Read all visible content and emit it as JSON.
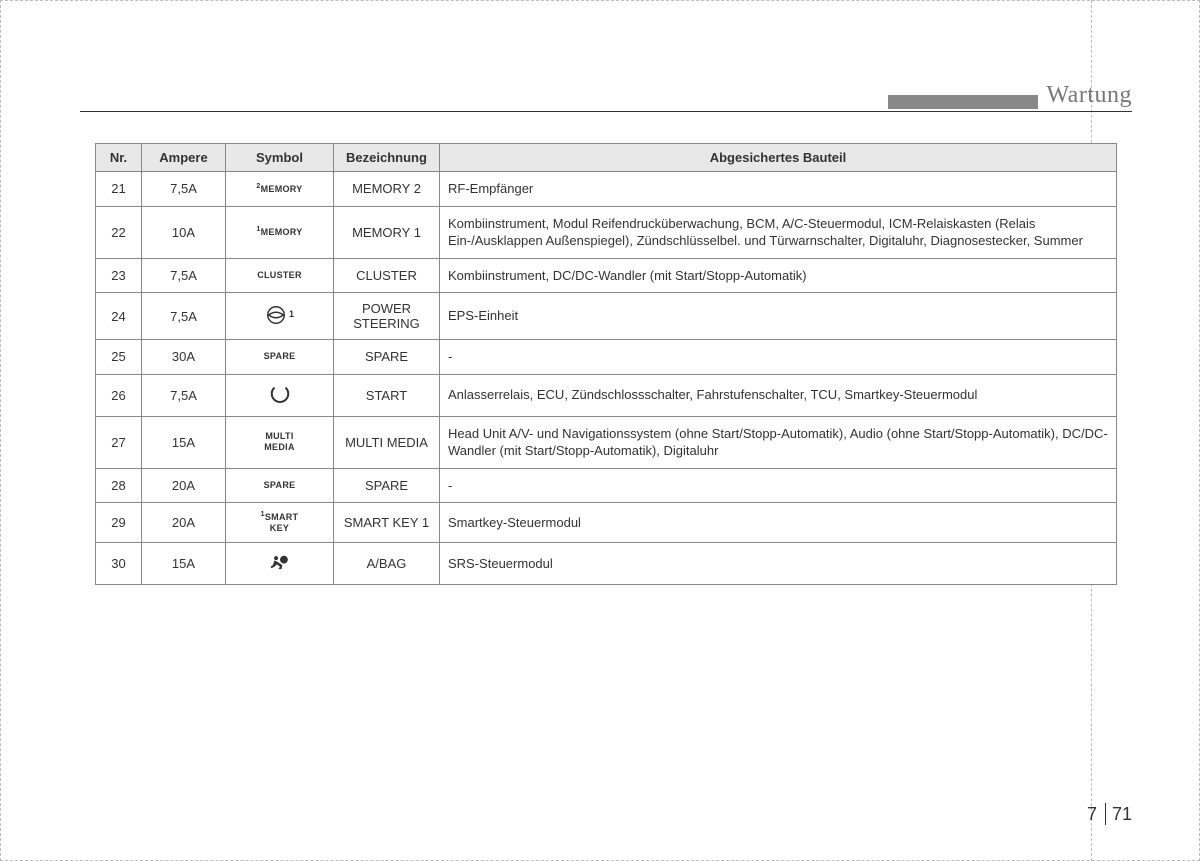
{
  "header": {
    "title": "Wartung"
  },
  "table": {
    "columns": [
      "Nr.",
      "Ampere",
      "Symbol",
      "Bezeichnung",
      "Abgesichertes Bauteil"
    ],
    "rows": [
      {
        "nr": "21",
        "ampere": "7,5A",
        "symbol_type": "text",
        "symbol_sup": "2",
        "symbol_text": "MEMORY",
        "bezeichnung": "MEMORY 2",
        "bauteil": "RF-Empfänger"
      },
      {
        "nr": "22",
        "ampere": "10A",
        "symbol_type": "text",
        "symbol_sup": "1",
        "symbol_text": "MEMORY",
        "bezeichnung": "MEMORY 1",
        "bauteil": "Kombiinstrument, Modul Reifendrucküberwachung, BCM, A/C-Steuermodul, ICM-Relaiskasten (Relais Ein-/Ausklappen Außenspiegel), Zündschlüsselbel. und Türwarnschalter, Digitaluhr, Diagnosestecker, Summer"
      },
      {
        "nr": "23",
        "ampere": "7,5A",
        "symbol_type": "text",
        "symbol_sup": "",
        "symbol_text": "CLUSTER",
        "bezeichnung": "CLUSTER",
        "bauteil": "Kombiinstrument, DC/DC-Wandler (mit Start/Stopp-Automatik)"
      },
      {
        "nr": "24",
        "ampere": "7,5A",
        "symbol_type": "icon",
        "symbol_icon": "steering",
        "symbol_side": "1",
        "bezeichnung": "POWER STEERING",
        "bauteil": "EPS-Einheit"
      },
      {
        "nr": "25",
        "ampere": "30A",
        "symbol_type": "text",
        "symbol_sup": "",
        "symbol_text": "SPARE",
        "bezeichnung": "SPARE",
        "bauteil": "-"
      },
      {
        "nr": "26",
        "ampere": "7,5A",
        "symbol_type": "icon",
        "symbol_icon": "start",
        "symbol_side": "",
        "bezeichnung": "START",
        "bauteil": "Anlasserrelais, ECU, Zündschlossschalter, Fahrstufenschalter, TCU, Smartkey-Steuermodul"
      },
      {
        "nr": "27",
        "ampere": "15A",
        "symbol_type": "text2",
        "symbol_line1": "MULTI",
        "symbol_line2": "MEDIA",
        "bezeichnung": "MULTI MEDIA",
        "bauteil": "Head Unit A/V- und Navigationssystem (ohne Start/Stopp-Automatik), Audio (ohne Start/Stopp-Automatik), DC/DC-Wandler (mit Start/Stopp-Automatik), Digitaluhr"
      },
      {
        "nr": "28",
        "ampere": "20A",
        "symbol_type": "text",
        "symbol_sup": "",
        "symbol_text": "SPARE",
        "bezeichnung": "SPARE",
        "bauteil": "-"
      },
      {
        "nr": "29",
        "ampere": "20A",
        "symbol_type": "text2sup",
        "symbol_sup": "1",
        "symbol_line1": "SMART",
        "symbol_line2": "KEY",
        "bezeichnung": "SMART KEY 1",
        "bauteil": "Smartkey-Steuermodul"
      },
      {
        "nr": "30",
        "ampere": "15A",
        "symbol_type": "icon",
        "symbol_icon": "airbag",
        "symbol_side": "",
        "bezeichnung": "A/BAG",
        "bauteil": "SRS-Steuermodul"
      }
    ]
  },
  "footer": {
    "chapter": "7",
    "page": "71"
  },
  "colors": {
    "header_bar": "#888888",
    "header_text": "#777777",
    "th_bg": "#e8e8e8",
    "border": "#888888",
    "text": "#333333"
  }
}
